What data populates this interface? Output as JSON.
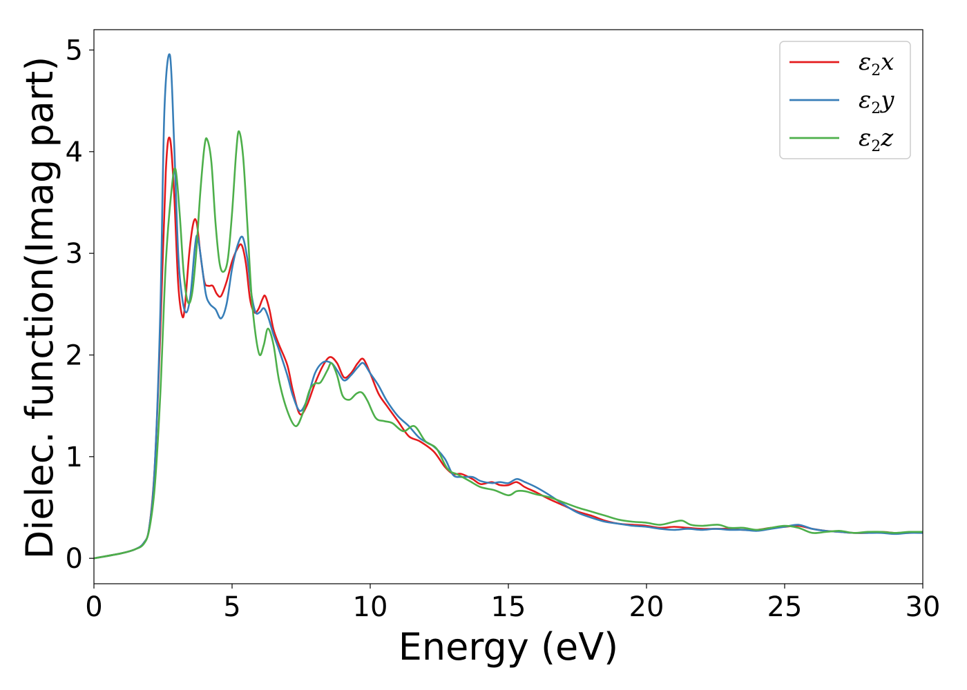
{
  "chart_data": {
    "type": "line",
    "title": "",
    "xlabel": "Energy (eV)",
    "ylabel": "Dielec. function(Imag part)",
    "xlim": [
      0,
      30
    ],
    "ylim": [
      -0.25,
      5.2
    ],
    "xticks": [
      0,
      5,
      10,
      15,
      20,
      25,
      30
    ],
    "yticks": [
      0,
      1,
      2,
      3,
      4,
      5
    ],
    "xtick_labels": [
      "0",
      "5",
      "10",
      "15",
      "20",
      "25",
      "30"
    ],
    "ytick_labels": [
      "0",
      "1",
      "2",
      "3",
      "4",
      "5"
    ],
    "grid": false,
    "legend_position": "top-right",
    "series": [
      {
        "name": "ε2x",
        "legend": {
          "base": "ε",
          "sub": "2",
          "tail": "x"
        },
        "color": "#e41a1c",
        "x": [
          0,
          1.0,
          1.5,
          1.8,
          2.0,
          2.2,
          2.4,
          2.6,
          2.75,
          2.9,
          3.05,
          3.2,
          3.3,
          3.45,
          3.6,
          3.72,
          3.85,
          4.0,
          4.15,
          4.3,
          4.45,
          4.6,
          4.8,
          5.0,
          5.2,
          5.35,
          5.5,
          5.65,
          5.8,
          5.95,
          6.1,
          6.2,
          6.35,
          6.5,
          6.7,
          7.0,
          7.2,
          7.45,
          7.7,
          8.0,
          8.3,
          8.55,
          8.8,
          9.05,
          9.3,
          9.55,
          9.75,
          10.0,
          10.3,
          10.6,
          11.0,
          11.4,
          11.8,
          12.3,
          12.7,
          13.0,
          13.3,
          13.7,
          14.0,
          14.4,
          14.7,
          15.0,
          15.3,
          15.6,
          16.0,
          16.5,
          17.0,
          17.5,
          18.0,
          18.5,
          19.0,
          19.5,
          20.0,
          20.5,
          21.0,
          21.5,
          22.0,
          22.5,
          23.0,
          23.5,
          24.0,
          24.5,
          25.0,
          25.5,
          26.0,
          26.5,
          27.0,
          27.5,
          28.0,
          28.5,
          29.0,
          29.5,
          30.0
        ],
        "y": [
          0,
          0.05,
          0.09,
          0.15,
          0.3,
          0.9,
          2.2,
          3.8,
          4.13,
          3.6,
          2.7,
          2.38,
          2.5,
          3.0,
          3.3,
          3.3,
          3.0,
          2.72,
          2.68,
          2.68,
          2.6,
          2.58,
          2.72,
          2.92,
          3.05,
          3.08,
          2.9,
          2.55,
          2.42,
          2.45,
          2.55,
          2.58,
          2.45,
          2.25,
          2.1,
          1.9,
          1.65,
          1.42,
          1.5,
          1.72,
          1.9,
          1.98,
          1.92,
          1.78,
          1.82,
          1.92,
          1.96,
          1.82,
          1.62,
          1.5,
          1.35,
          1.2,
          1.15,
          1.05,
          0.9,
          0.83,
          0.83,
          0.78,
          0.73,
          0.75,
          0.72,
          0.72,
          0.75,
          0.7,
          0.65,
          0.58,
          0.52,
          0.46,
          0.42,
          0.37,
          0.34,
          0.33,
          0.32,
          0.3,
          0.31,
          0.3,
          0.29,
          0.29,
          0.29,
          0.28,
          0.28,
          0.3,
          0.31,
          0.32,
          0.29,
          0.27,
          0.26,
          0.25,
          0.25,
          0.26,
          0.25,
          0.25,
          0.26
        ]
      },
      {
        "name": "ε2y",
        "legend": {
          "base": "ε",
          "sub": "2",
          "tail": "y"
        },
        "color": "#377eb8",
        "x": [
          0,
          1.0,
          1.5,
          1.8,
          2.0,
          2.2,
          2.4,
          2.55,
          2.75,
          2.9,
          3.05,
          3.2,
          3.35,
          3.5,
          3.65,
          3.75,
          3.9,
          4.05,
          4.2,
          4.4,
          4.6,
          4.8,
          5.0,
          5.2,
          5.38,
          5.55,
          5.7,
          5.85,
          6.0,
          6.15,
          6.3,
          6.5,
          6.7,
          7.0,
          7.2,
          7.45,
          7.7,
          8.0,
          8.3,
          8.6,
          8.8,
          9.05,
          9.3,
          9.55,
          9.75,
          10.0,
          10.3,
          10.6,
          11.0,
          11.4,
          11.8,
          12.3,
          12.7,
          13.0,
          13.3,
          13.7,
          14.0,
          14.4,
          14.7,
          15.0,
          15.3,
          15.6,
          16.0,
          16.5,
          17.0,
          17.5,
          18.0,
          18.5,
          19.0,
          19.5,
          20.0,
          20.5,
          21.0,
          21.5,
          22.0,
          22.5,
          23.0,
          23.5,
          24.0,
          24.5,
          25.0,
          25.5,
          26.0,
          26.5,
          27.0,
          27.5,
          28.0,
          28.5,
          29.0,
          29.5,
          30.0
        ],
        "y": [
          0,
          0.05,
          0.09,
          0.15,
          0.3,
          0.9,
          2.4,
          4.4,
          4.95,
          4.1,
          3.0,
          2.55,
          2.42,
          2.6,
          3.05,
          3.17,
          2.9,
          2.6,
          2.5,
          2.45,
          2.36,
          2.5,
          2.85,
          3.08,
          3.16,
          2.95,
          2.6,
          2.42,
          2.42,
          2.46,
          2.38,
          2.2,
          2.05,
          1.8,
          1.6,
          1.45,
          1.55,
          1.82,
          1.93,
          1.92,
          1.85,
          1.75,
          1.8,
          1.88,
          1.92,
          1.82,
          1.7,
          1.55,
          1.4,
          1.3,
          1.18,
          1.1,
          0.98,
          0.82,
          0.8,
          0.8,
          0.76,
          0.74,
          0.75,
          0.74,
          0.78,
          0.75,
          0.7,
          0.62,
          0.53,
          0.45,
          0.4,
          0.36,
          0.34,
          0.32,
          0.31,
          0.29,
          0.28,
          0.29,
          0.28,
          0.29,
          0.28,
          0.28,
          0.27,
          0.29,
          0.31,
          0.33,
          0.29,
          0.27,
          0.26,
          0.25,
          0.25,
          0.25,
          0.24,
          0.25,
          0.25
        ]
      },
      {
        "name": "ε2z",
        "legend": {
          "base": "ε",
          "sub": "2",
          "tail": "z"
        },
        "color": "#4daf4a",
        "x": [
          0,
          1.0,
          1.5,
          1.8,
          2.0,
          2.2,
          2.4,
          2.6,
          2.8,
          2.95,
          3.1,
          3.25,
          3.4,
          3.55,
          3.7,
          3.85,
          4.0,
          4.1,
          4.25,
          4.4,
          4.55,
          4.7,
          4.85,
          5.0,
          5.15,
          5.25,
          5.4,
          5.55,
          5.7,
          5.85,
          6.0,
          6.15,
          6.3,
          6.5,
          6.7,
          7.0,
          7.3,
          7.55,
          7.8,
          8.0,
          8.2,
          8.45,
          8.6,
          8.8,
          9.0,
          9.25,
          9.5,
          9.7,
          9.9,
          10.2,
          10.5,
          10.8,
          11.2,
          11.6,
          12.0,
          12.4,
          12.8,
          13.2,
          13.6,
          14.0,
          14.5,
          15.0,
          15.3,
          15.6,
          16.0,
          16.5,
          17.0,
          17.5,
          18.0,
          18.5,
          19.0,
          19.5,
          20.0,
          20.5,
          21.0,
          21.3,
          21.6,
          22.0,
          22.6,
          23.0,
          23.5,
          24.0,
          24.5,
          25.0,
          25.5,
          26.0,
          26.5,
          27.0,
          27.5,
          28.0,
          28.5,
          29.0,
          29.5,
          30.0
        ],
        "y": [
          0,
          0.05,
          0.09,
          0.14,
          0.28,
          0.7,
          1.6,
          2.9,
          3.6,
          3.83,
          3.4,
          2.8,
          2.52,
          2.6,
          3.0,
          3.6,
          4.05,
          4.12,
          3.9,
          3.3,
          2.9,
          2.82,
          2.95,
          3.4,
          4.0,
          4.2,
          3.95,
          3.3,
          2.6,
          2.2,
          2.0,
          2.1,
          2.26,
          2.1,
          1.75,
          1.45,
          1.3,
          1.42,
          1.65,
          1.72,
          1.73,
          1.85,
          1.92,
          1.8,
          1.6,
          1.56,
          1.62,
          1.63,
          1.55,
          1.38,
          1.35,
          1.33,
          1.25,
          1.3,
          1.15,
          1.08,
          0.88,
          0.82,
          0.76,
          0.7,
          0.67,
          0.62,
          0.66,
          0.66,
          0.63,
          0.6,
          0.55,
          0.5,
          0.46,
          0.42,
          0.38,
          0.36,
          0.35,
          0.33,
          0.36,
          0.37,
          0.33,
          0.32,
          0.33,
          0.3,
          0.3,
          0.28,
          0.3,
          0.32,
          0.3,
          0.25,
          0.26,
          0.27,
          0.25,
          0.26,
          0.26,
          0.25,
          0.26,
          0.26
        ]
      }
    ]
  }
}
